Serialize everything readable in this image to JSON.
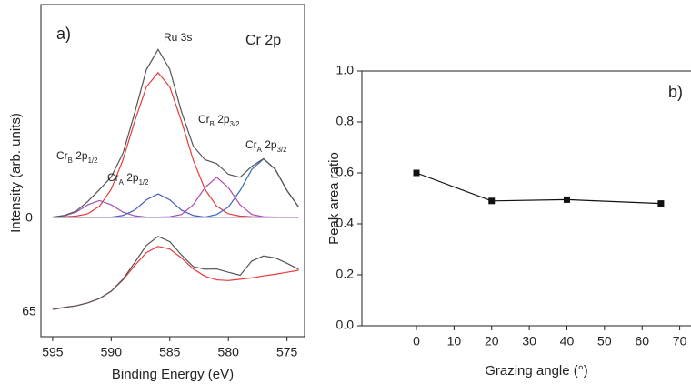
{
  "chart_data": [
    {
      "type": "line",
      "xlabel": "Binding Energy (eV)",
      "ylabel": "Intensity (arb. units)",
      "x": [
        595,
        594,
        593,
        592,
        591,
        590,
        589,
        588,
        587,
        586,
        585,
        584,
        583,
        582,
        581,
        580,
        579,
        578,
        577,
        576,
        575,
        574
      ],
      "xlim": [
        596,
        573.5
      ],
      "xticks": [
        595,
        590,
        585,
        580,
        575
      ],
      "ylim": [
        0,
        100
      ],
      "series": [
        {
          "color": "#e83a3a",
          "values": [
            36.0,
            36.1,
            36.3,
            37.0,
            39.3,
            44.4,
            53.2,
            64.8,
            75.2,
            79.5,
            75.2,
            64.8,
            53.2,
            44.4,
            39.3,
            37.0,
            36.3,
            36.1,
            36.0,
            36.0,
            36.0,
            36.0
          ]
        },
        {
          "color": "#a050b0",
          "values": [
            36.0,
            36.4,
            37.5,
            39.7,
            41.0,
            39.7,
            37.5,
            36.4,
            36.0,
            36.0,
            36.0,
            36.0,
            36.0,
            36.0,
            36.0,
            36.0,
            36.0,
            36.0,
            36.0,
            36.0,
            36.0,
            36.0
          ]
        },
        {
          "color": "#4a5cc0",
          "values": [
            36.0,
            36.0,
            36.0,
            36.0,
            36.0,
            36.0,
            36.5,
            38.1,
            41.2,
            43.0,
            41.2,
            38.1,
            36.5,
            36.0,
            36.0,
            36.0,
            36.0,
            36.0,
            36.0,
            36.0,
            36.0,
            36.0
          ]
        },
        {
          "color": "#b04aa8",
          "values": [
            36.0,
            36.0,
            36.0,
            36.0,
            36.0,
            36.0,
            36.0,
            36.0,
            36.0,
            36.0,
            36.1,
            36.8,
            39.7,
            44.9,
            48.0,
            44.9,
            39.7,
            36.8,
            36.1,
            36.0,
            36.0,
            36.0
          ]
        },
        {
          "color": "#3a6ab8",
          "values": [
            36.0,
            36.0,
            36.0,
            36.0,
            36.0,
            36.0,
            36.0,
            36.0,
            36.0,
            36.0,
            36.0,
            36.0,
            36.0,
            36.0,
            36.8,
            39.0,
            44.0,
            50.4,
            53.5,
            50.4,
            44.0,
            39.0
          ]
        },
        {
          "color": "#555555",
          "values": [
            36.0,
            36.5,
            37.8,
            40.7,
            44.3,
            48.1,
            55.2,
            67.3,
            80.4,
            86.5,
            80.5,
            67.7,
            57.4,
            53.3,
            52.1,
            48.9,
            48.0,
            51.3,
            53.6,
            50.4,
            44.0,
            39.0
          ]
        },
        {
          "color": "#e83a3a",
          "values": [
            8.2,
            8.8,
            9.3,
            10.2,
            11.5,
            13.7,
            17.1,
            21.4,
            25.3,
            27.2,
            26.4,
            23.7,
            20.4,
            18.2,
            17.1,
            16.9,
            17.3,
            17.7,
            18.3,
            18.8,
            19.4,
            20.0
          ]
        },
        {
          "color": "#555555",
          "values": [
            8.2,
            8.8,
            9.3,
            10.2,
            11.5,
            13.7,
            17.3,
            22.3,
            27.5,
            30.2,
            28.6,
            24.6,
            21.1,
            20.3,
            20.4,
            19.4,
            18.5,
            22.8,
            24.3,
            23.7,
            22.1,
            20.3
          ]
        }
      ],
      "annotations": [
        [
          "a)"
        ],
        [
          "Cr 2p"
        ],
        [
          "Ru 3s"
        ],
        [
          "Cr",
          "B",
          " 2p",
          "1/2"
        ],
        [
          "Cr",
          "A",
          " 2p",
          "1/2"
        ],
        [
          "Cr",
          "B",
          " 2p",
          "3/2"
        ],
        [
          "Cr",
          "A",
          " 2p",
          "3/2"
        ]
      ],
      "spectrum_labels": [
        "0",
        "65"
      ]
    },
    {
      "type": "line",
      "markers": true,
      "xlabel": "Grazing angle (°)",
      "ylabel": "Peak area ratio",
      "x": [
        0,
        20,
        40,
        65
      ],
      "xlim": [
        -14.5,
        73
      ],
      "xticks": [
        0,
        10,
        20,
        30,
        40,
        50,
        60,
        70
      ],
      "ylim": [
        0,
        1
      ],
      "yticks": [
        {
          "value": 0,
          "label": "0.0"
        },
        {
          "value": 0.2,
          "label": "0.2"
        },
        {
          "value": 0.4,
          "label": "0.4"
        },
        {
          "value": 0.6,
          "label": "0.6"
        },
        {
          "value": 0.8,
          "label": "0.8"
        },
        {
          "value": 1,
          "label": "1.0"
        }
      ],
      "series": [
        {
          "color": "#111111",
          "values": [
            0.6,
            0.49,
            0.495,
            0.48
          ]
        }
      ],
      "annotations": [
        [
          "b)"
        ]
      ]
    }
  ]
}
